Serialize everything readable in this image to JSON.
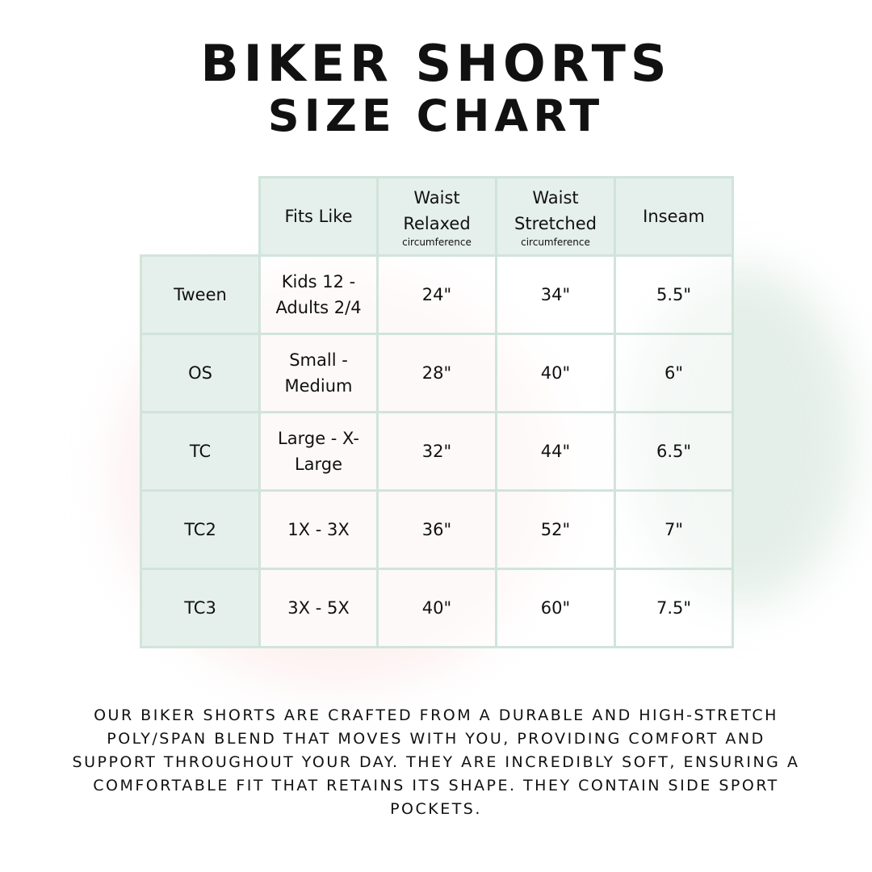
{
  "title": {
    "line1": "BIKER SHORTS",
    "line2": "SIZE CHART"
  },
  "table": {
    "headers": [
      {
        "main": "Fits Like",
        "sub": ""
      },
      {
        "main": "Waist Relaxed",
        "sub": "circumference"
      },
      {
        "main": "Waist Stretched",
        "sub": "circumference"
      },
      {
        "main": "Inseam",
        "sub": ""
      }
    ],
    "rows": [
      {
        "size": "Tween",
        "fits": "Kids 12 - Adults 2/4",
        "relaxed": "24\"",
        "stretched": "34\"",
        "inseam": "5.5\""
      },
      {
        "size": "OS",
        "fits": "Small - Medium",
        "relaxed": "28\"",
        "stretched": "40\"",
        "inseam": "6\""
      },
      {
        "size": "TC",
        "fits": "Large - X-Large",
        "relaxed": "32\"",
        "stretched": "44\"",
        "inseam": "6.5\""
      },
      {
        "size": "TC2",
        "fits": "1X - 3X",
        "relaxed": "36\"",
        "stretched": "52\"",
        "inseam": "7\""
      },
      {
        "size": "TC3",
        "fits": "3X - 5X",
        "relaxed": "40\"",
        "stretched": "60\"",
        "inseam": "7.5\""
      }
    ]
  },
  "description": "Our biker shorts are crafted from a durable and high-stretch poly/span blend that moves with you, providing comfort and support throughout your day. They are incredibly soft, ensuring a comfortable fit that retains its shape. They contain side sport pockets.",
  "colors": {
    "border": "#d1e4db",
    "header_bg": "#e5efeb",
    "text": "#111111"
  }
}
